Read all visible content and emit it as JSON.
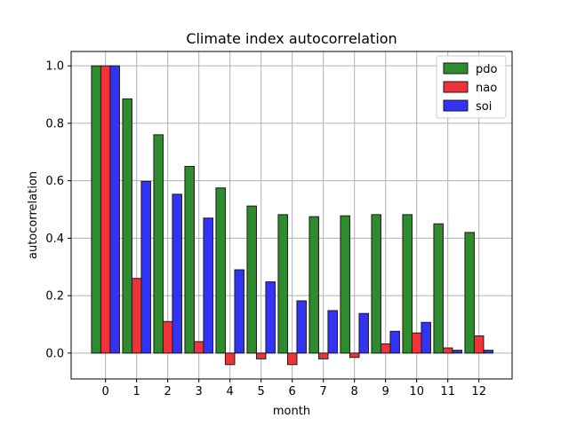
{
  "chart_data": {
    "type": "bar",
    "title": "Climate index autocorrelation",
    "xlabel": "month",
    "ylabel": "autocorrelation",
    "categories": [
      "0",
      "1",
      "2",
      "3",
      "4",
      "5",
      "6",
      "7",
      "8",
      "9",
      "10",
      "11",
      "12"
    ],
    "ylim": [
      -0.09,
      1.05
    ],
    "yticks": [
      "0.0",
      "0.2",
      "0.4",
      "0.6",
      "0.8",
      "1.0"
    ],
    "ytick_values": [
      0.0,
      0.2,
      0.4,
      0.6,
      0.8,
      1.0
    ],
    "grid": true,
    "legend_position": "top-right",
    "series": [
      {
        "name": "pdo",
        "color": "#2e8b2e",
        "values": [
          1.0,
          0.885,
          0.76,
          0.65,
          0.575,
          0.512,
          0.482,
          0.475,
          0.478,
          0.482,
          0.482,
          0.45,
          0.42
        ]
      },
      {
        "name": "nao",
        "color": "#f0333a",
        "values": [
          1.0,
          0.26,
          0.11,
          0.04,
          -0.04,
          -0.02,
          -0.04,
          -0.02,
          -0.015,
          0.032,
          0.07,
          0.018,
          0.06
        ]
      },
      {
        "name": "soi",
        "color": "#3333f5",
        "values": [
          1.0,
          0.598,
          0.553,
          0.47,
          0.29,
          0.248,
          0.182,
          0.148,
          0.138,
          0.076,
          0.107,
          0.01,
          0.01
        ]
      }
    ]
  }
}
